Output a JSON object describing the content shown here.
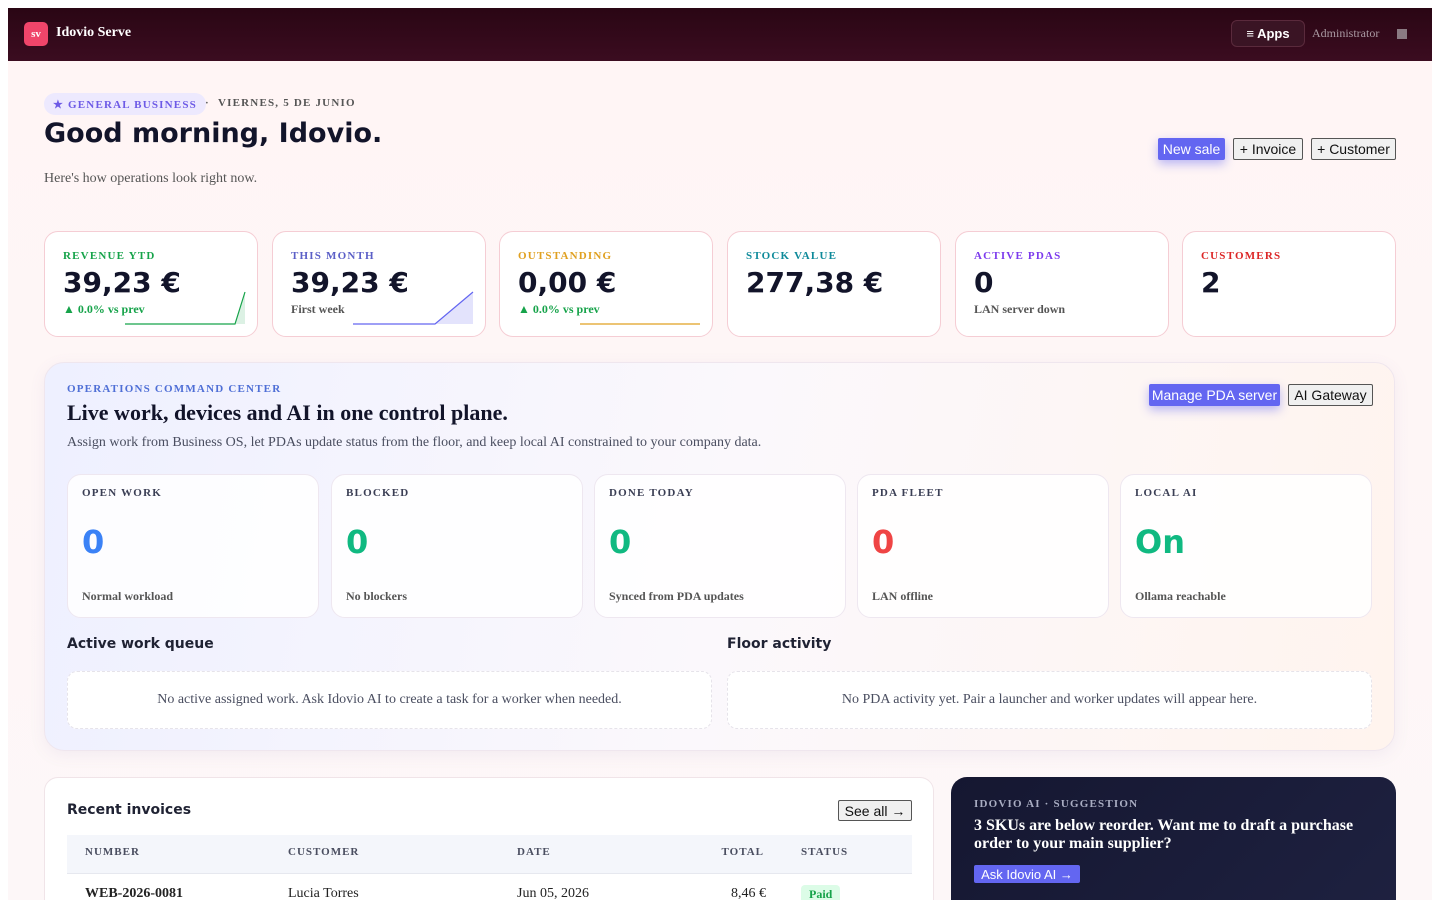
{
  "nav": {
    "logo": "sv",
    "brand": "Idovio Serve",
    "apps": "≡ Apps",
    "user": "Administrator"
  },
  "header": {
    "tag": "★ GENERAL BUSINESS",
    "separator": "·",
    "date": "VIERNES, 5 DE JUNIO",
    "title": "Good morning, Idovio.",
    "subtitle": "Here's how operations look right now.",
    "actions": [
      "New sale",
      "+ Invoice",
      "+ Customer"
    ]
  },
  "kpis": [
    {
      "label": "REVENUE YTD",
      "value": "39,23 €",
      "note": "▲ 0.0% vs prev"
    },
    {
      "label": "THIS MONTH",
      "value": "39,23 €",
      "note": "First week"
    },
    {
      "label": "OUTSTANDING",
      "value": "0,00 €",
      "note": "▲ 0.0% vs prev"
    },
    {
      "label": "STOCK VALUE",
      "value": "277,38 €"
    },
    {
      "label": "ACTIVE PDAS",
      "value": "0",
      "note": "LAN server down"
    },
    {
      "label": "CUSTOMERS",
      "value": "2"
    }
  ],
  "ops": {
    "label": "OPERATIONS COMMAND CENTER",
    "title": "Live work, devices and AI in one control plane.",
    "description": "Assign work from Business OS, let PDAs update status from the floor, and keep local AI constrained to your company data.",
    "actions": [
      "Manage PDA server",
      "AI Gateway"
    ],
    "cards": [
      {
        "label": "OPEN WORK",
        "value": "0",
        "note": "Normal workload"
      },
      {
        "label": "BLOCKED",
        "value": "0",
        "note": "No blockers"
      },
      {
        "label": "DONE TODAY",
        "value": "0",
        "note": "Synced from PDA updates"
      },
      {
        "label": "PDA FLEET",
        "value": "0",
        "note": "LAN offline"
      },
      {
        "label": "LOCAL AI",
        "value": "On",
        "note": "Ollama reachable"
      }
    ],
    "queue": {
      "title": "Active work queue",
      "empty": "No active assigned work. Ask Idovio AI to create a task for a worker when needed."
    },
    "activity": {
      "title": "Floor activity",
      "empty": "No PDA activity yet. Pair a launcher and worker updates will appear here."
    }
  },
  "invoices": {
    "title": "Recent invoices",
    "see_all": "See all →",
    "columns": [
      "NUMBER",
      "CUSTOMER",
      "DATE",
      "TOTAL",
      "STATUS"
    ],
    "rows": [
      [
        "WEB-2026-0081",
        "Lucia Torres",
        "Jun 05, 2026",
        "8,46 €",
        "Paid"
      ]
    ]
  },
  "ai": {
    "label": "IDOVIO AI · SUGGESTION",
    "message": "3 SKUs are below reorder. Want me to draft a purchase order to your main supplier?",
    "action": "Ask Idovio AI →"
  }
}
